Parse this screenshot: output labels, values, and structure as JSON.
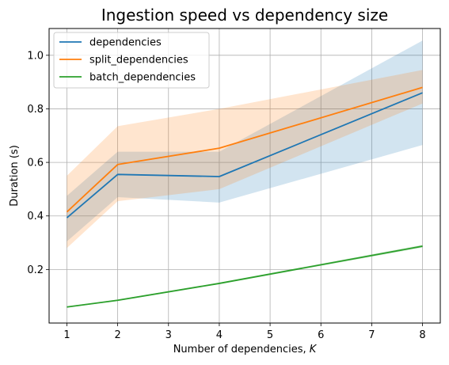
{
  "chart_data": {
    "type": "line",
    "title": "Ingestion speed vs dependency size",
    "xlabel": "Number of dependencies, ",
    "xlabel_var": "K",
    "ylabel": "Duration (s)",
    "xlim": [
      0.65,
      8.35
    ],
    "ylim": [
      0.0,
      1.1
    ],
    "xticks": [
      1,
      2,
      3,
      4,
      5,
      6,
      7,
      8
    ],
    "yticks": [
      0.2,
      0.4,
      0.6,
      0.8,
      1.0
    ],
    "ytick_labels": [
      "0.2",
      "0.4",
      "0.6",
      "0.8",
      "1.0"
    ],
    "grid": true,
    "legend_position": "upper-left",
    "series": [
      {
        "name": "dependencies",
        "color": "#1f77b4",
        "x": [
          1,
          2,
          4,
          8
        ],
        "y": [
          0.393,
          0.555,
          0.547,
          0.86
        ],
        "lower": [
          0.305,
          0.47,
          0.45,
          0.665
        ],
        "upper": [
          0.475,
          0.64,
          0.64,
          1.055
        ]
      },
      {
        "name": "split_dependencies",
        "color": "#ff7f0e",
        "x": [
          1,
          2,
          4,
          8
        ],
        "y": [
          0.415,
          0.592,
          0.653,
          0.88
        ],
        "lower": [
          0.28,
          0.455,
          0.5,
          0.82
        ],
        "upper": [
          0.55,
          0.735,
          0.8,
          0.945
        ]
      },
      {
        "name": "batch_dependencies",
        "color": "#2ca02c",
        "x": [
          1,
          2,
          4,
          8
        ],
        "y": [
          0.06,
          0.085,
          0.148,
          0.287
        ],
        "lower": [
          0.058,
          0.082,
          0.145,
          0.282
        ],
        "upper": [
          0.062,
          0.088,
          0.151,
          0.292
        ]
      }
    ]
  }
}
